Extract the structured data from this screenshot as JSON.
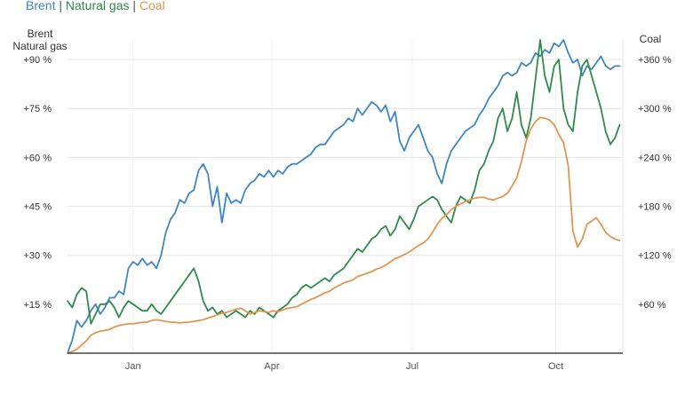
{
  "legend": {
    "series": [
      {
        "label": "Brent",
        "color": "#3f86c6"
      },
      {
        "label": "Natural gas",
        "color": "#2e8b4a"
      },
      {
        "label": "Coal",
        "color": "#e2964f"
      }
    ],
    "separator": "|"
  },
  "axes": {
    "left_title_line1": "Brent",
    "left_title_line2": "Natural gas",
    "right_title": "Coal"
  },
  "chart_data": {
    "type": "line",
    "x_tick_labels": [
      "Jan",
      "Apr",
      "Jul",
      "Oct"
    ],
    "x_tick_positions": [
      12,
      101,
      191,
      283
    ],
    "x_range": [
      -30,
      326
    ],
    "left_axis": {
      "ticks": [
        15,
        30,
        45,
        60,
        75,
        90
      ],
      "tick_labels": [
        "+15 %",
        "+30 %",
        "+45 %",
        "+60 %",
        "+75 %",
        "+90 %"
      ],
      "ylim": [
        0,
        96
      ]
    },
    "right_axis": {
      "ticks": [
        60,
        120,
        180,
        240,
        300,
        360
      ],
      "tick_labels": [
        "+60 %",
        "+120 %",
        "+180 %",
        "+240 %",
        "+300 %",
        "+360 %"
      ],
      "ylim": [
        0,
        384
      ]
    },
    "grid": true,
    "series": [
      {
        "name": "Brent",
        "color": "#3f86c6",
        "axis": "left",
        "x": [
          -30,
          -27,
          -24,
          -21,
          -18,
          -15,
          -12,
          -9,
          -6,
          -3,
          0,
          3,
          6,
          9,
          12,
          15,
          18,
          21,
          24,
          27,
          30,
          33,
          36,
          39,
          42,
          45,
          48,
          51,
          54,
          57,
          60,
          63,
          66,
          69,
          72,
          75,
          78,
          81,
          84,
          87,
          90,
          93,
          96,
          99,
          102,
          105,
          108,
          111,
          114,
          117,
          120,
          123,
          126,
          129,
          132,
          135,
          138,
          141,
          144,
          147,
          150,
          153,
          156,
          159,
          162,
          165,
          168,
          171,
          174,
          177,
          180,
          183,
          186,
          189,
          192,
          195,
          198,
          201,
          204,
          207,
          210,
          213,
          216,
          219,
          222,
          225,
          228,
          231,
          234,
          237,
          240,
          243,
          246,
          249,
          252,
          255,
          258,
          261,
          264,
          267,
          270,
          273,
          276,
          279,
          282,
          285,
          288,
          291,
          294,
          297,
          300,
          303,
          306,
          309,
          312,
          315,
          318,
          321,
          324
        ],
        "values": [
          0,
          4,
          10,
          8,
          10,
          13,
          15,
          12,
          14,
          17,
          17,
          19,
          18,
          26,
          28,
          27,
          29,
          27,
          28,
          26,
          30,
          37,
          41,
          43,
          47,
          46,
          49,
          50,
          56,
          58,
          55,
          45,
          51,
          40,
          49,
          46,
          47,
          46,
          50,
          52,
          53,
          55,
          54,
          56,
          54,
          56,
          55,
          57,
          58,
          58,
          59,
          60,
          61,
          63,
          64,
          64,
          66,
          68,
          69,
          70,
          72,
          71,
          75,
          73,
          75,
          77,
          76,
          74,
          76,
          71,
          74,
          65,
          62,
          66,
          68,
          70,
          66,
          62,
          60,
          55,
          52,
          58,
          62,
          64,
          66,
          68,
          69,
          70,
          73,
          75,
          78,
          80,
          82,
          85,
          86,
          85,
          86,
          89,
          88,
          89,
          92,
          91,
          93,
          92,
          95,
          94,
          96,
          92,
          89,
          90,
          85,
          88,
          87,
          89,
          91,
          88,
          87,
          88,
          88
        ]
      },
      {
        "name": "Natural gas",
        "color": "#2e8b4a",
        "axis": "left",
        "x": [
          -30,
          -27,
          -24,
          -21,
          -18,
          -15,
          -12,
          -9,
          -6,
          -3,
          0,
          3,
          6,
          9,
          12,
          15,
          18,
          21,
          24,
          27,
          30,
          33,
          36,
          39,
          42,
          45,
          48,
          51,
          54,
          57,
          60,
          63,
          66,
          69,
          72,
          75,
          78,
          81,
          84,
          87,
          90,
          93,
          96,
          99,
          102,
          105,
          108,
          111,
          114,
          117,
          120,
          123,
          126,
          129,
          132,
          135,
          138,
          141,
          144,
          147,
          150,
          153,
          156,
          159,
          162,
          165,
          168,
          171,
          174,
          177,
          180,
          183,
          186,
          189,
          192,
          195,
          198,
          201,
          204,
          207,
          210,
          213,
          216,
          219,
          222,
          225,
          228,
          231,
          234,
          237,
          240,
          243,
          246,
          249,
          252,
          255,
          258,
          261,
          264,
          267,
          270,
          273,
          276,
          279,
          282,
          285,
          288,
          291,
          294,
          297,
          300,
          303,
          306,
          309,
          312,
          315,
          318,
          321,
          324
        ],
        "values": [
          16,
          14,
          18,
          20,
          19,
          9,
          12,
          15,
          15,
          16,
          14,
          11,
          14,
          16,
          15,
          14,
          13,
          13,
          15,
          13,
          12,
          14,
          16,
          18,
          20,
          22,
          24,
          26,
          22,
          16,
          13,
          14,
          12,
          13,
          11,
          12,
          13,
          12,
          11,
          13,
          12,
          14,
          13,
          12,
          11,
          13,
          14,
          15,
          17,
          18,
          20,
          21,
          20,
          21,
          22,
          23,
          22,
          24,
          25,
          26,
          28,
          30,
          32,
          31,
          33,
          35,
          36,
          38,
          39,
          36,
          38,
          42,
          40,
          38,
          41,
          45,
          46,
          47,
          48,
          47,
          44,
          42,
          40,
          45,
          48,
          47,
          46,
          50,
          56,
          58,
          62,
          65,
          72,
          75,
          68,
          72,
          80,
          70,
          66,
          72,
          84,
          96,
          85,
          80,
          88,
          90,
          75,
          70,
          68,
          80,
          88,
          90,
          85,
          80,
          75,
          68,
          64,
          66,
          70
        ]
      },
      {
        "name": "Coal",
        "color": "#e2964f",
        "axis": "right",
        "x": [
          -30,
          -27,
          -24,
          -21,
          -18,
          -15,
          -12,
          -9,
          -6,
          -3,
          0,
          3,
          6,
          9,
          12,
          15,
          18,
          21,
          24,
          27,
          30,
          33,
          36,
          39,
          42,
          45,
          48,
          51,
          54,
          57,
          60,
          63,
          66,
          69,
          72,
          75,
          78,
          81,
          84,
          87,
          90,
          93,
          96,
          99,
          102,
          105,
          108,
          111,
          114,
          117,
          120,
          123,
          126,
          129,
          132,
          135,
          138,
          141,
          144,
          147,
          150,
          153,
          156,
          159,
          162,
          165,
          168,
          171,
          174,
          177,
          180,
          183,
          186,
          189,
          192,
          195,
          198,
          201,
          204,
          207,
          210,
          213,
          216,
          219,
          222,
          225,
          228,
          231,
          234,
          237,
          240,
          243,
          246,
          249,
          252,
          255,
          258,
          261,
          264,
          267,
          270,
          273,
          276,
          279,
          282,
          285,
          288,
          291,
          294,
          297,
          300,
          303,
          306,
          309,
          312,
          315,
          318,
          321,
          324
        ],
        "values": [
          0,
          2,
          5,
          10,
          15,
          22,
          25,
          27,
          28,
          29,
          32,
          34,
          35,
          36,
          36,
          37,
          38,
          38,
          40,
          41,
          40,
          39,
          38,
          38,
          37,
          38,
          38,
          39,
          40,
          41,
          43,
          45,
          47,
          49,
          50,
          52,
          54,
          55,
          52,
          48,
          50,
          52,
          51,
          50,
          52,
          51,
          53,
          55,
          56,
          57,
          60,
          63,
          66,
          68,
          71,
          74,
          76,
          80,
          83,
          86,
          88,
          90,
          94,
          96,
          98,
          100,
          103,
          105,
          108,
          112,
          116,
          118,
          121,
          124,
          128,
          132,
          135,
          140,
          148,
          158,
          165,
          170,
          176,
          180,
          183,
          186,
          188,
          190,
          191,
          191,
          189,
          188,
          190,
          192,
          196,
          205,
          215,
          235,
          260,
          275,
          284,
          289,
          288,
          286,
          280,
          268,
          258,
          230,
          150,
          130,
          140,
          158,
          162,
          166,
          158,
          148,
          143,
          140,
          138
        ]
      }
    ]
  }
}
